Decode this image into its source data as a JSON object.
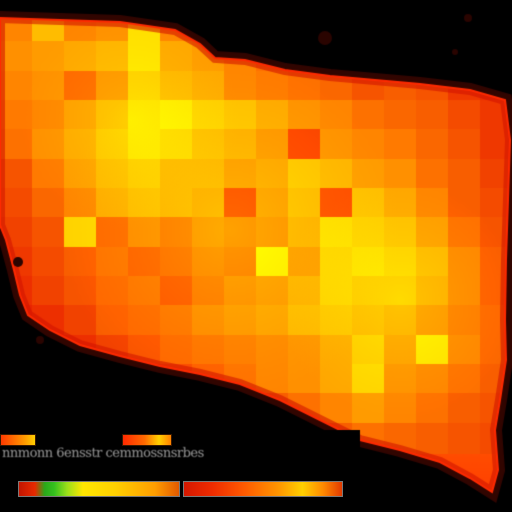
{
  "map": {
    "legend": {
      "caption": "nnmonn 6ensstr  cemmossnsrbes",
      "colorbar_segments": 2
    },
    "palette": {
      "low": "#e81c00",
      "mid": "#ff7a00",
      "high": "#ffe800",
      "background": "#000000",
      "coast_outline": "#5a0a00"
    },
    "cell_intensity_rows": [
      [
        0.55,
        0.8,
        0.55,
        0.6,
        0.95,
        0.55,
        0.5,
        0.45,
        0.4,
        0.35,
        0.3,
        0.28,
        0.25,
        0.2,
        0.25,
        0.15
      ],
      [
        0.6,
        0.65,
        0.7,
        0.75,
        0.95,
        0.7,
        0.65,
        0.55,
        0.45,
        0.4,
        0.3,
        0.25,
        0.3,
        0.2,
        0.15,
        0.1
      ],
      [
        0.55,
        0.6,
        0.4,
        0.6,
        0.85,
        0.75,
        0.7,
        0.55,
        0.5,
        0.45,
        0.4,
        0.3,
        0.35,
        0.3,
        0.15,
        0.1
      ],
      [
        0.5,
        0.55,
        0.65,
        0.75,
        0.9,
        0.95,
        0.85,
        0.8,
        0.7,
        0.6,
        0.55,
        0.45,
        0.4,
        0.35,
        0.25,
        0.15
      ],
      [
        0.45,
        0.6,
        0.7,
        0.8,
        0.9,
        0.85,
        0.75,
        0.7,
        0.6,
        0.2,
        0.6,
        0.55,
        0.5,
        0.4,
        0.3,
        0.15
      ],
      [
        0.3,
        0.5,
        0.65,
        0.75,
        0.8,
        0.7,
        0.7,
        0.6,
        0.65,
        0.8,
        0.75,
        0.65,
        0.6,
        0.45,
        0.35,
        0.2
      ],
      [
        0.25,
        0.4,
        0.55,
        0.7,
        0.75,
        0.7,
        0.65,
        0.2,
        0.6,
        0.75,
        0.25,
        0.8,
        0.7,
        0.55,
        0.35,
        0.25
      ],
      [
        0.2,
        0.3,
        0.9,
        0.4,
        0.55,
        0.45,
        0.55,
        0.5,
        0.55,
        0.7,
        0.9,
        0.85,
        0.8,
        0.65,
        0.45,
        0.3
      ],
      [
        0.15,
        0.25,
        0.35,
        0.45,
        0.35,
        0.4,
        0.5,
        0.45,
        0.95,
        0.6,
        0.85,
        0.9,
        0.85,
        0.75,
        0.55,
        0.35
      ],
      [
        0.1,
        0.2,
        0.3,
        0.4,
        0.45,
        0.3,
        0.45,
        0.55,
        0.6,
        0.7,
        0.85,
        0.8,
        0.8,
        0.7,
        0.55,
        0.35
      ],
      [
        0.05,
        0.1,
        0.2,
        0.35,
        0.4,
        0.45,
        0.55,
        0.6,
        0.65,
        0.75,
        0.8,
        0.75,
        0.7,
        0.6,
        0.5,
        0.4
      ],
      [
        0.0,
        0.05,
        0.1,
        0.2,
        0.3,
        0.4,
        0.45,
        0.5,
        0.55,
        0.6,
        0.7,
        0.85,
        0.65,
        0.95,
        0.55,
        0.4
      ],
      [
        0.0,
        0.0,
        0.05,
        0.1,
        0.15,
        0.25,
        0.35,
        0.45,
        0.55,
        0.6,
        0.7,
        0.9,
        0.6,
        0.55,
        0.45,
        0.35
      ],
      [
        0.0,
        0.0,
        0.0,
        0.05,
        0.1,
        0.15,
        0.2,
        0.25,
        0.35,
        0.45,
        0.55,
        0.65,
        0.55,
        0.45,
        0.35,
        0.3
      ],
      [
        0.0,
        0.0,
        0.0,
        0.0,
        0.0,
        0.05,
        0.1,
        0.15,
        0.2,
        0.25,
        0.35,
        0.45,
        0.4,
        0.35,
        0.3,
        0.25
      ]
    ]
  }
}
